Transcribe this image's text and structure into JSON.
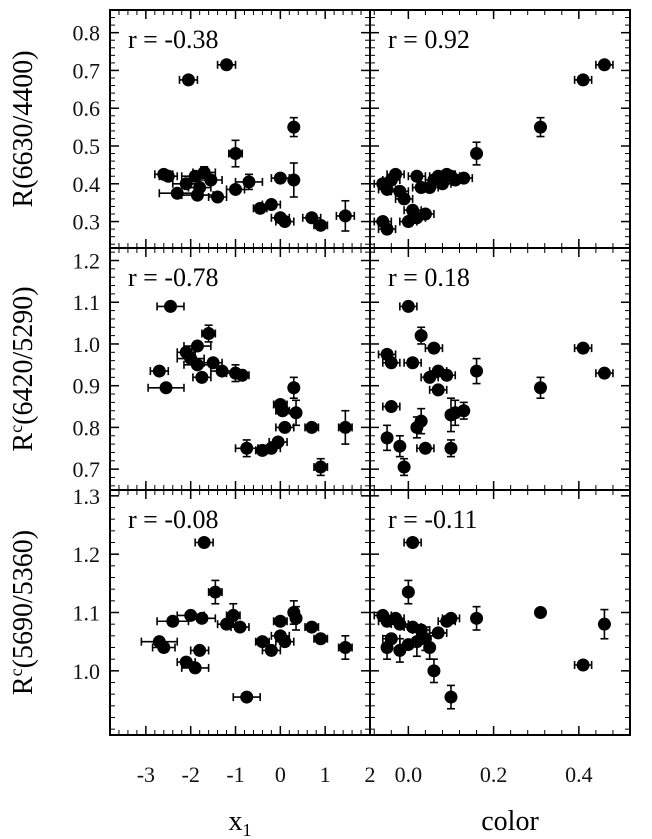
{
  "chart_data": {
    "type": "scatter",
    "x_columns": [
      {
        "label": "x",
        "label_sub": "1",
        "range": [
          -3.8,
          2.0
        ],
        "ticks": [
          -3,
          -2,
          -1,
          0,
          1,
          2
        ],
        "tick_labels": [
          "-3",
          "-2",
          "-1",
          "0",
          "1",
          "2"
        ]
      },
      {
        "label": "color",
        "range": [
          -0.09,
          0.52
        ],
        "ticks": [
          0.0,
          0.2,
          0.4
        ],
        "tick_labels": [
          "0.0",
          "0.2",
          "0.4"
        ]
      }
    ],
    "y_rows": [
      {
        "label": "R(6630/4400)",
        "ylim": [
          0.23,
          0.86
        ],
        "ticks": [
          0.3,
          0.4,
          0.5,
          0.6,
          0.7,
          0.8
        ],
        "tick_labels": [
          "0.3",
          "0.4",
          "0.5",
          "0.6",
          "0.7",
          "0.8"
        ]
      },
      {
        "label_main": "R",
        "label_sup": "c",
        "label_rest": "(6420/5290)",
        "ylim": [
          0.65,
          1.23
        ],
        "ticks": [
          0.7,
          0.8,
          0.9,
          1.0,
          1.1,
          1.2
        ],
        "tick_labels": [
          "0.7",
          "0.8",
          "0.9",
          "1.0",
          "1.1",
          "1.2"
        ]
      },
      {
        "label_main": "R",
        "label_sup": "c",
        "label_rest": "(5690/5360)",
        "ylim": [
          0.89,
          1.31
        ],
        "ticks": [
          1.0,
          1.1,
          1.2,
          1.3
        ],
        "tick_labels": [
          "1.0",
          "1.1",
          "1.2",
          "1.3"
        ]
      }
    ],
    "panels": [
      {
        "row": 0,
        "col": 0,
        "r_text": "r = -0.38",
        "points": [
          {
            "x": -2.05,
            "y": 0.675,
            "xerr": 0.2
          },
          {
            "x": -1.2,
            "y": 0.715,
            "xerr": 0.2
          },
          {
            "x": -2.6,
            "y": 0.425,
            "xerr": 0.2
          },
          {
            "x": -2.5,
            "y": 0.42,
            "xerr": 0.2
          },
          {
            "x": -1.9,
            "y": 0.42,
            "xerr": 0.3
          },
          {
            "x": -1.7,
            "y": 0.43,
            "xerr": 0.25,
            "yerr": 0.015
          },
          {
            "x": -2.1,
            "y": 0.4,
            "xerr": 0.3
          },
          {
            "x": -1.8,
            "y": 0.39,
            "xerr": 0.25
          },
          {
            "x": -1.55,
            "y": 0.41,
            "xerr": 0.25
          },
          {
            "x": -2.3,
            "y": 0.375,
            "xerr": 0.4
          },
          {
            "x": -1.85,
            "y": 0.37,
            "xerr": 0.35
          },
          {
            "x": -1.4,
            "y": 0.365,
            "xerr": 0.2
          },
          {
            "x": -1.0,
            "y": 0.48,
            "xerr": 0.15,
            "yerr": 0.035
          },
          {
            "x": -0.7,
            "y": 0.405,
            "xerr": 0.3,
            "yerr": 0.02
          },
          {
            "x": -1.0,
            "y": 0.385,
            "xerr": 0.2
          },
          {
            "x": -0.45,
            "y": 0.335,
            "xerr": 0.15
          },
          {
            "x": -0.2,
            "y": 0.345,
            "xerr": 0.2
          },
          {
            "x": 0.0,
            "y": 0.415,
            "xerr": 0.2
          },
          {
            "x": 0.0,
            "y": 0.31,
            "xerr": 0.2
          },
          {
            "x": 0.1,
            "y": 0.3,
            "xerr": 0.2
          },
          {
            "x": 0.3,
            "y": 0.55,
            "yerr": 0.025
          },
          {
            "x": 0.3,
            "y": 0.41,
            "yerr": 0.045
          },
          {
            "x": 0.7,
            "y": 0.31,
            "xerr": 0.2
          },
          {
            "x": 0.9,
            "y": 0.29,
            "xerr": 0.15
          },
          {
            "x": 1.45,
            "y": 0.315,
            "xerr": 0.2,
            "yerr": 0.04
          }
        ]
      },
      {
        "row": 0,
        "col": 1,
        "r_text": "r = 0.92",
        "points": [
          {
            "x": -0.06,
            "y": 0.4,
            "xerr": 0.02
          },
          {
            "x": -0.04,
            "y": 0.41,
            "xerr": 0.02
          },
          {
            "x": -0.03,
            "y": 0.425,
            "xerr": 0.02
          },
          {
            "x": -0.05,
            "y": 0.385,
            "xerr": 0.02
          },
          {
            "x": -0.06,
            "y": 0.3,
            "xerr": 0.02
          },
          {
            "x": -0.05,
            "y": 0.28,
            "xerr": 0.02
          },
          {
            "x": -0.02,
            "y": 0.38,
            "xerr": 0.02
          },
          {
            "x": -0.01,
            "y": 0.36,
            "xerr": 0.02
          },
          {
            "x": 0.0,
            "y": 0.3,
            "xerr": 0.02
          },
          {
            "x": 0.01,
            "y": 0.33,
            "xerr": 0.02
          },
          {
            "x": 0.02,
            "y": 0.42,
            "xerr": 0.02
          },
          {
            "x": 0.02,
            "y": 0.31,
            "xerr": 0.02
          },
          {
            "x": 0.03,
            "y": 0.39,
            "xerr": 0.02
          },
          {
            "x": 0.04,
            "y": 0.32,
            "xerr": 0.02
          },
          {
            "x": 0.05,
            "y": 0.39,
            "xerr": 0.02
          },
          {
            "x": 0.06,
            "y": 0.41,
            "xerr": 0.02
          },
          {
            "x": 0.07,
            "y": 0.42,
            "xerr": 0.02
          },
          {
            "x": 0.08,
            "y": 0.4,
            "xerr": 0.02
          },
          {
            "x": 0.09,
            "y": 0.425,
            "xerr": 0.02
          },
          {
            "x": 0.1,
            "y": 0.42,
            "xerr": 0.02
          },
          {
            "x": 0.11,
            "y": 0.41,
            "xerr": 0.02
          },
          {
            "x": 0.13,
            "y": 0.415,
            "xerr": 0.02
          },
          {
            "x": 0.16,
            "y": 0.48,
            "yerr": 0.03
          },
          {
            "x": 0.31,
            "y": 0.55,
            "yerr": 0.025
          },
          {
            "x": 0.41,
            "y": 0.675,
            "xerr": 0.02
          },
          {
            "x": 0.46,
            "y": 0.715,
            "xerr": 0.02
          }
        ]
      },
      {
        "row": 1,
        "col": 0,
        "r_text": "r = -0.78",
        "points": [
          {
            "x": -2.45,
            "y": 1.09,
            "xerr": 0.3
          },
          {
            "x": -2.1,
            "y": 0.98,
            "xerr": 0.2
          },
          {
            "x": -1.85,
            "y": 0.995,
            "xerr": 0.3
          },
          {
            "x": -1.6,
            "y": 1.025,
            "xerr": 0.15,
            "yerr": 0.02
          },
          {
            "x": -2.7,
            "y": 0.935,
            "xerr": 0.2
          },
          {
            "x": -2.55,
            "y": 0.895,
            "xerr": 0.4
          },
          {
            "x": -2.0,
            "y": 0.965,
            "xerr": 0.3
          },
          {
            "x": -1.85,
            "y": 0.95,
            "xerr": 0.3
          },
          {
            "x": -1.75,
            "y": 0.92,
            "xerr": 0.2
          },
          {
            "x": -1.5,
            "y": 0.955,
            "xerr": 0.2
          },
          {
            "x": -1.3,
            "y": 0.935,
            "xerr": 0.25
          },
          {
            "x": -1.0,
            "y": 0.93,
            "xerr": 0.2,
            "yerr": 0.02
          },
          {
            "x": -0.85,
            "y": 0.925,
            "xerr": 0.15
          },
          {
            "x": -0.75,
            "y": 0.75,
            "xerr": 0.25,
            "yerr": 0.02
          },
          {
            "x": -0.4,
            "y": 0.745,
            "xerr": 0.15
          },
          {
            "x": -0.2,
            "y": 0.75,
            "xerr": 0.2
          },
          {
            "x": -0.05,
            "y": 0.765,
            "xerr": 0.2
          },
          {
            "x": 0.0,
            "y": 0.855,
            "xerr": 0.15
          },
          {
            "x": 0.05,
            "y": 0.84,
            "xerr": 0.15
          },
          {
            "x": 0.1,
            "y": 0.8,
            "xerr": 0.2
          },
          {
            "x": 0.3,
            "y": 0.895,
            "yerr": 0.025
          },
          {
            "x": 0.35,
            "y": 0.835,
            "yerr": 0.03
          },
          {
            "x": 0.7,
            "y": 0.8,
            "xerr": 0.15
          },
          {
            "x": 0.9,
            "y": 0.705,
            "xerr": 0.15,
            "yerr": 0.02
          },
          {
            "x": 1.45,
            "y": 0.8,
            "xerr": 0.15,
            "yerr": 0.04
          }
        ]
      },
      {
        "row": 1,
        "col": 1,
        "r_text": "r = 0.18",
        "points": [
          {
            "x": 0.0,
            "y": 1.09,
            "xerr": 0.02
          },
          {
            "x": -0.05,
            "y": 0.975,
            "xerr": 0.02
          },
          {
            "x": -0.04,
            "y": 0.955,
            "xerr": 0.02
          },
          {
            "x": 0.03,
            "y": 1.02,
            "yerr": 0.02
          },
          {
            "x": 0.01,
            "y": 0.955,
            "xerr": 0.02
          },
          {
            "x": 0.05,
            "y": 0.92,
            "xerr": 0.02
          },
          {
            "x": 0.06,
            "y": 0.99,
            "xerr": 0.02
          },
          {
            "x": 0.07,
            "y": 0.935,
            "xerr": 0.02
          },
          {
            "x": 0.09,
            "y": 0.925,
            "xerr": 0.02
          },
          {
            "x": -0.04,
            "y": 0.85,
            "xerr": 0.02
          },
          {
            "x": -0.05,
            "y": 0.775,
            "yerr": 0.03
          },
          {
            "x": -0.02,
            "y": 0.755,
            "yerr": 0.025
          },
          {
            "x": -0.01,
            "y": 0.705,
            "yerr": 0.02
          },
          {
            "x": 0.02,
            "y": 0.8,
            "yerr": 0.025
          },
          {
            "x": 0.03,
            "y": 0.815,
            "yerr": 0.03
          },
          {
            "x": 0.04,
            "y": 0.75,
            "xerr": 0.02
          },
          {
            "x": 0.07,
            "y": 0.89,
            "xerr": 0.02
          },
          {
            "x": 0.1,
            "y": 0.83,
            "yerr": 0.04
          },
          {
            "x": 0.11,
            "y": 0.835,
            "yerr": 0.03
          },
          {
            "x": 0.13,
            "y": 0.84,
            "yerr": 0.02
          },
          {
            "x": 0.1,
            "y": 0.75,
            "yerr": 0.02
          },
          {
            "x": 0.16,
            "y": 0.935,
            "yerr": 0.03
          },
          {
            "x": 0.31,
            "y": 0.895,
            "yerr": 0.025
          },
          {
            "x": 0.41,
            "y": 0.99,
            "xerr": 0.02
          },
          {
            "x": 0.46,
            "y": 0.93,
            "xerr": 0.02
          }
        ]
      },
      {
        "row": 2,
        "col": 0,
        "r_text": "r = -0.08",
        "points": [
          {
            "x": -1.7,
            "y": 1.22,
            "xerr": 0.2
          },
          {
            "x": -1.45,
            "y": 1.135,
            "xerr": 0.15,
            "yerr": 0.02
          },
          {
            "x": -2.4,
            "y": 1.085,
            "xerr": 0.35
          },
          {
            "x": -2.0,
            "y": 1.095,
            "xerr": 0.3
          },
          {
            "x": -1.75,
            "y": 1.09,
            "xerr": 0.3
          },
          {
            "x": -2.7,
            "y": 1.05,
            "xerr": 0.4
          },
          {
            "x": -2.6,
            "y": 1.04,
            "xerr": 0.25
          },
          {
            "x": -1.8,
            "y": 1.035,
            "xerr": 0.2
          },
          {
            "x": -2.1,
            "y": 1.015,
            "xerr": 0.2
          },
          {
            "x": -1.9,
            "y": 1.005,
            "xerr": 0.3
          },
          {
            "x": -1.2,
            "y": 1.08,
            "xerr": 0.2
          },
          {
            "x": -1.05,
            "y": 1.095,
            "xerr": 0.15,
            "yerr": 0.02
          },
          {
            "x": -0.9,
            "y": 1.075,
            "xerr": 0.2
          },
          {
            "x": -0.4,
            "y": 1.05,
            "xerr": 0.15
          },
          {
            "x": -0.2,
            "y": 1.035,
            "xerr": 0.2
          },
          {
            "x": 0.0,
            "y": 1.085,
            "xerr": 0.15
          },
          {
            "x": 0.0,
            "y": 1.06,
            "xerr": 0.2
          },
          {
            "x": 0.1,
            "y": 1.05,
            "xerr": 0.2
          },
          {
            "x": 0.3,
            "y": 1.1,
            "yerr": 0.02
          },
          {
            "x": 0.35,
            "y": 1.09,
            "yerr": 0.02
          },
          {
            "x": 0.7,
            "y": 1.075,
            "xerr": 0.15
          },
          {
            "x": 0.9,
            "y": 1.055,
            "xerr": 0.15
          },
          {
            "x": 1.45,
            "y": 1.04,
            "xerr": 0.15,
            "yerr": 0.02
          },
          {
            "x": -0.75,
            "y": 0.955,
            "xerr": 0.3
          }
        ]
      },
      {
        "row": 2,
        "col": 1,
        "r_text": "r = -0.11",
        "points": [
          {
            "x": 0.01,
            "y": 1.22,
            "xerr": 0.02
          },
          {
            "x": 0.0,
            "y": 1.135,
            "yerr": 0.02
          },
          {
            "x": -0.06,
            "y": 1.095,
            "xerr": 0.02
          },
          {
            "x": -0.05,
            "y": 1.085,
            "xerr": 0.02
          },
          {
            "x": -0.03,
            "y": 1.09,
            "xerr": 0.02
          },
          {
            "x": -0.02,
            "y": 1.08,
            "xerr": 0.02
          },
          {
            "x": 0.01,
            "y": 1.075,
            "xerr": 0.02
          },
          {
            "x": 0.03,
            "y": 1.07,
            "xerr": 0.02
          },
          {
            "x": -0.04,
            "y": 1.055,
            "xerr": 0.02
          },
          {
            "x": -0.05,
            "y": 1.04,
            "yerr": 0.02
          },
          {
            "x": -0.02,
            "y": 1.035,
            "yerr": 0.02
          },
          {
            "x": 0.0,
            "y": 1.045,
            "xerr": 0.02
          },
          {
            "x": 0.02,
            "y": 1.05,
            "yerr": 0.025
          },
          {
            "x": 0.04,
            "y": 1.055,
            "yerr": 0.02
          },
          {
            "x": 0.05,
            "y": 1.04,
            "yerr": 0.02
          },
          {
            "x": 0.07,
            "y": 1.065,
            "xerr": 0.02
          },
          {
            "x": 0.09,
            "y": 1.085,
            "xerr": 0.02
          },
          {
            "x": 0.1,
            "y": 1.09,
            "xerr": 0.02
          },
          {
            "x": 0.06,
            "y": 1.0,
            "yerr": 0.02
          },
          {
            "x": 0.1,
            "y": 0.955,
            "yerr": 0.02
          },
          {
            "x": 0.16,
            "y": 1.09,
            "yerr": 0.02
          },
          {
            "x": 0.31,
            "y": 1.1,
            "xerr": 0.01
          },
          {
            "x": 0.41,
            "y": 1.01,
            "xerr": 0.02
          },
          {
            "x": 0.46,
            "y": 1.08,
            "yerr": 0.025
          }
        ]
      }
    ]
  }
}
